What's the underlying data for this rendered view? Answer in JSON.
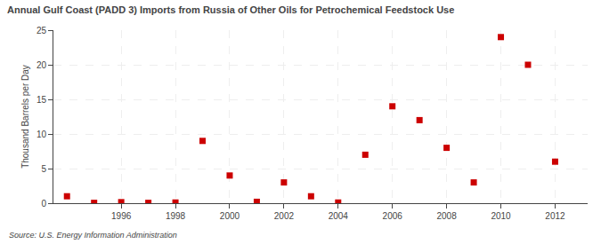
{
  "chart_data": {
    "type": "scatter",
    "title": "Annual Gulf Coast (PADD 3) Imports from Russia of Other Oils for Petrochemical Feedstock Use",
    "ylabel": "Thousand Barrels per Day",
    "annotations": [
      "Source: U.S. Energy Information Administration"
    ],
    "x": [
      1994,
      1995,
      1996,
      1997,
      1998,
      1999,
      2000,
      2001,
      2002,
      2003,
      2004,
      2005,
      2006,
      2007,
      2008,
      2009,
      2010,
      2011,
      2012
    ],
    "values": [
      1.0,
      0.05,
      0.15,
      0.05,
      0.1,
      9.0,
      4.0,
      0.2,
      3.0,
      1.0,
      0.1,
      7.0,
      14.0,
      12.0,
      8.0,
      3.0,
      24.0,
      20.0,
      6.0
    ],
    "color": "#cc0000",
    "marker": "square",
    "xlim": [
      1993.5,
      2013.2
    ],
    "ylim": [
      0,
      25
    ],
    "xticks": [
      1996,
      1998,
      2000,
      2002,
      2004,
      2006,
      2008,
      2010,
      2012
    ],
    "yticks": [
      0,
      5,
      10,
      15,
      20,
      25
    ],
    "grid": true
  }
}
